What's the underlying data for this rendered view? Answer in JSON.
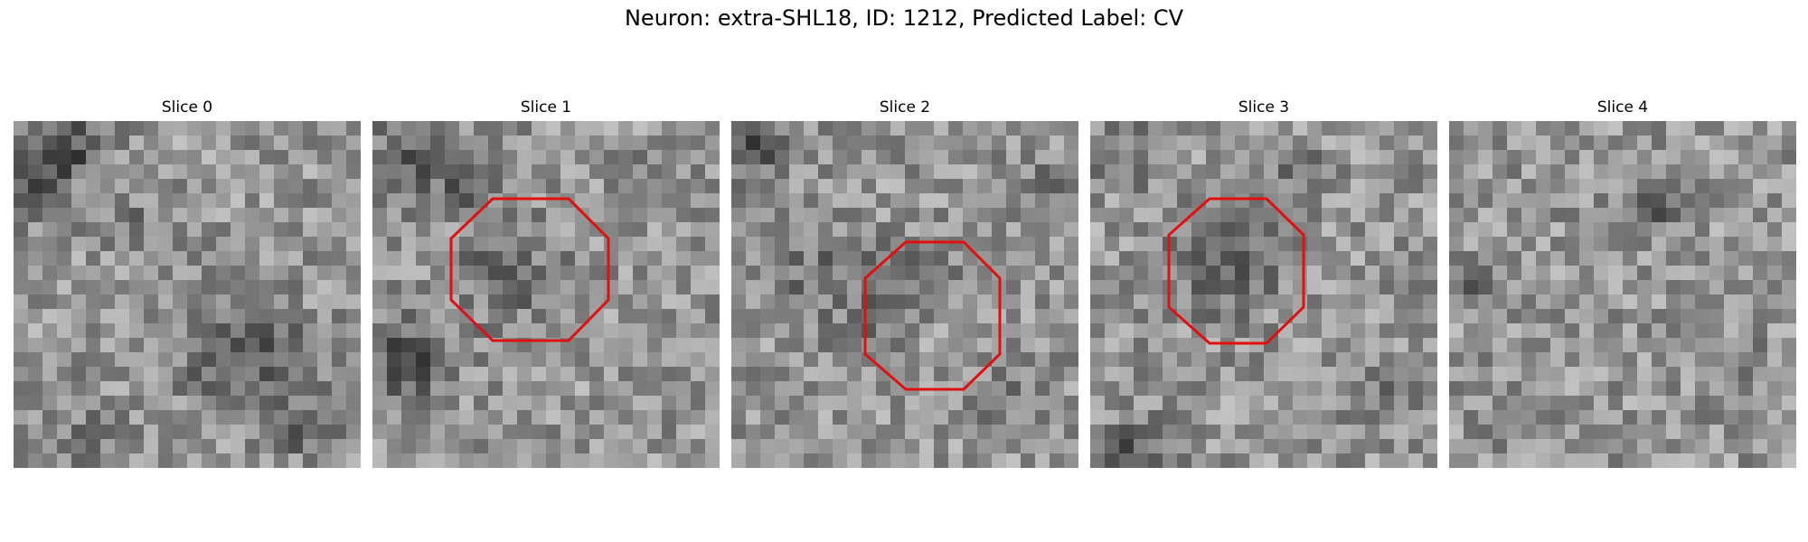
{
  "figure": {
    "title": "Neuron: extra-SHL18, ID: 1212, Predicted Label: CV",
    "outline_color": "#e01010",
    "panels": [
      {
        "title": "Slice 0",
        "has_outline": false
      },
      {
        "title": "Slice 1",
        "has_outline": true
      },
      {
        "title": "Slice 2",
        "has_outline": true
      },
      {
        "title": "Slice 3",
        "has_outline": true
      },
      {
        "title": "Slice 4",
        "has_outline": false
      }
    ]
  }
}
